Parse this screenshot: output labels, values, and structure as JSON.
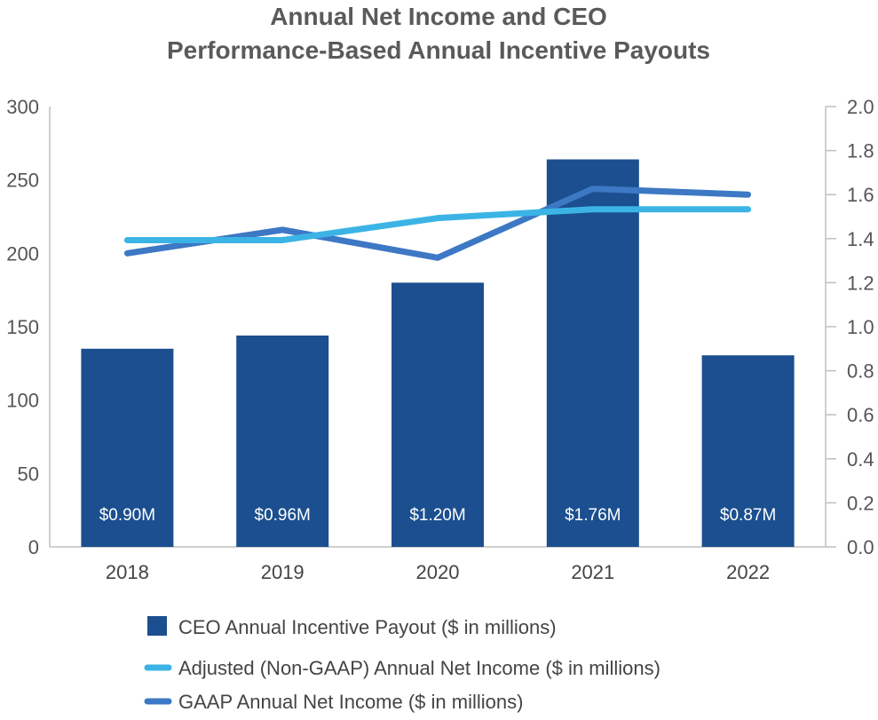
{
  "chart_data": {
    "type": "bar",
    "title_lines": [
      "Annual Net Income and CEO",
      "Performance-Based Annual Incentive Payouts"
    ],
    "categories": [
      "2018",
      "2019",
      "2020",
      "2021",
      "2022"
    ],
    "y_left": {
      "range": [
        0,
        300
      ],
      "ticks": [
        "0",
        "50",
        "100",
        "150",
        "200",
        "250",
        "300"
      ],
      "tick_values": [
        0,
        50,
        100,
        150,
        200,
        250,
        300
      ]
    },
    "y_right": {
      "range": [
        0,
        2.0
      ],
      "ticks": [
        "0.0",
        "0.2",
        "0.4",
        "0.6",
        "0.8",
        "1.0",
        "1.2",
        "1.4",
        "1.6",
        "1.8",
        "2.0"
      ],
      "tick_values": [
        0,
        0.2,
        0.4,
        0.6,
        0.8,
        1.0,
        1.2,
        1.4,
        1.6,
        1.8,
        2.0
      ]
    },
    "series": [
      {
        "name": "CEO Annual Incentive Payout ($ in millions)",
        "kind": "bar",
        "axis": "right",
        "values": [
          0.9,
          0.96,
          1.2,
          1.76,
          0.87
        ],
        "labels": [
          "$0.90M",
          "$0.96M",
          "$1.20M",
          "$1.76M",
          "$0.87M"
        ],
        "color": "#1b4f8f"
      },
      {
        "name": "Adjusted (Non-GAAP) Annual Net Income ($ in millions)",
        "kind": "line",
        "axis": "left",
        "values": [
          209,
          209,
          224,
          230,
          230
        ],
        "color": "#3bb4e5"
      },
      {
        "name": "GAAP Annual Net Income ($ in millions)",
        "kind": "line",
        "axis": "left",
        "values": [
          200,
          216,
          197,
          244,
          240
        ],
        "color": "#3d78c4"
      }
    ],
    "legend_position": "bottom-left",
    "grid": false
  },
  "colors": {
    "title": "#5a5a5a",
    "axis": "#bfbfbf",
    "tick_text": "#555555"
  }
}
